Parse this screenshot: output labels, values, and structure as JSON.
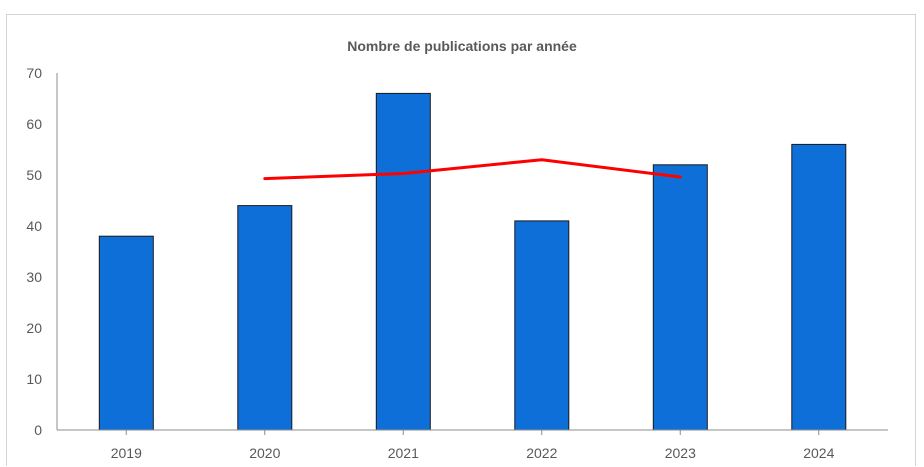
{
  "chart_data": {
    "type": "bar",
    "title": "Nombre de publications par année",
    "xlabel": "",
    "ylabel": "",
    "categories": [
      "2019",
      "2020",
      "2021",
      "2022",
      "2023",
      "2024"
    ],
    "series": [
      {
        "type": "bar",
        "values": [
          38,
          44,
          66,
          41,
          52,
          56
        ],
        "color": "#0f6fd9"
      },
      {
        "type": "line",
        "values": [
          null,
          49.3,
          50.3,
          53,
          49.6,
          null
        ],
        "color": "#ff0000"
      }
    ],
    "ylim": [
      0,
      70
    ],
    "yticks": [
      0,
      10,
      20,
      30,
      40,
      50,
      60,
      70
    ],
    "grid": false,
    "legend": "none",
    "colors": {
      "bar": "#0f6fd9",
      "bar_border": "#1a1a1a",
      "line": "#ff0000",
      "axis": "#8c8c8c",
      "text": "#595959"
    }
  }
}
